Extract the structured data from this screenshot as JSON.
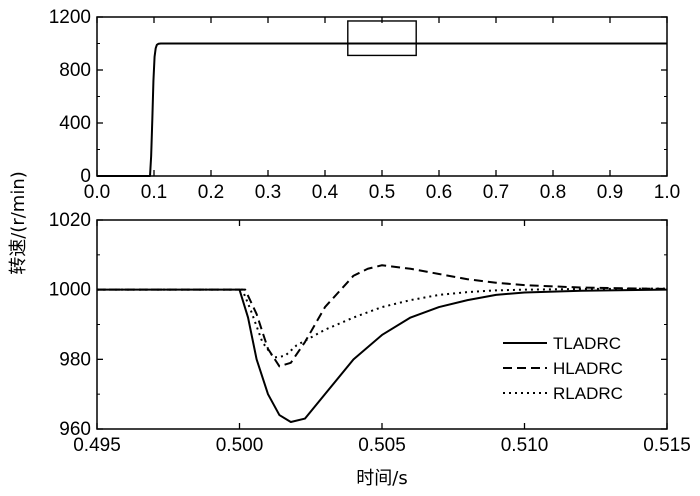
{
  "figure": {
    "ylabel": "转速/(r/min)",
    "xlabel": "时间/s"
  },
  "chart_data": [
    {
      "type": "line",
      "panel": "top",
      "xlim": [
        0.0,
        1.0
      ],
      "ylim": [
        0,
        1200
      ],
      "xticks": [
        "0.0",
        "0.1",
        "0.2",
        "0.3",
        "0.4",
        "0.5",
        "0.6",
        "0.7",
        "0.8",
        "0.9",
        "1.0"
      ],
      "yticks": [
        "0",
        "400",
        "800",
        "1200"
      ],
      "yticks_minor": [
        200,
        600,
        1000
      ],
      "zoom_box": {
        "x": [
          0.44,
          0.56
        ],
        "y": [
          910,
          1170
        ]
      },
      "series": [
        {
          "style": "solid",
          "x": [
            0.0,
            0.093,
            0.095,
            0.097,
            0.099,
            0.101,
            0.103,
            0.105,
            0.108,
            0.112,
            1.0
          ],
          "y": [
            0,
            0,
            150,
            420,
            720,
            900,
            965,
            990,
            998,
            1000,
            1000
          ]
        }
      ]
    },
    {
      "type": "line",
      "panel": "bottom",
      "xlim": [
        0.495,
        0.515
      ],
      "ylim": [
        960,
        1020
      ],
      "xticks": [
        "0.495",
        "0.500",
        "0.505",
        "0.510",
        "0.515"
      ],
      "yticks": [
        "960",
        "980",
        "1000",
        "1020"
      ],
      "yticks_minor": [
        970,
        990,
        1010
      ],
      "legend_position": "bottom-right",
      "series": [
        {
          "name": "TLADRC",
          "style": "solid",
          "x": [
            0.495,
            0.5,
            0.5003,
            0.5006,
            0.501,
            0.5014,
            0.5018,
            0.5023,
            0.503,
            0.504,
            0.505,
            0.506,
            0.507,
            0.508,
            0.509,
            0.51,
            0.512,
            0.515
          ],
          "y": [
            1000,
            1000,
            992,
            980,
            970,
            964,
            962,
            963,
            970,
            980,
            987,
            992,
            995,
            997,
            998.5,
            999.2,
            999.7,
            1000
          ]
        },
        {
          "name": "HLADRC",
          "style": "dashed",
          "x": [
            0.495,
            0.5002,
            0.5006,
            0.501,
            0.5014,
            0.5018,
            0.5023,
            0.503,
            0.504,
            0.5045,
            0.505,
            0.506,
            0.507,
            0.508,
            0.509,
            0.51,
            0.512,
            0.515
          ],
          "y": [
            1000,
            1000,
            993,
            983,
            978,
            979,
            985,
            995,
            1004,
            1006,
            1007,
            1006,
            1004.5,
            1003,
            1002,
            1001.3,
            1000.6,
            1000.2
          ]
        },
        {
          "name": "RLADRC",
          "style": "dotted",
          "x": [
            0.495,
            0.5001,
            0.5004,
            0.5008,
            0.5012,
            0.5016,
            0.502,
            0.503,
            0.504,
            0.505,
            0.506,
            0.507,
            0.508,
            0.509,
            0.51,
            0.512,
            0.515
          ],
          "y": [
            1000,
            1000,
            994,
            985,
            980.5,
            981,
            984,
            988.5,
            992,
            995,
            997,
            998.5,
            999.3,
            999.8,
            1000,
            1000.2,
            1000.3
          ]
        }
      ]
    }
  ]
}
